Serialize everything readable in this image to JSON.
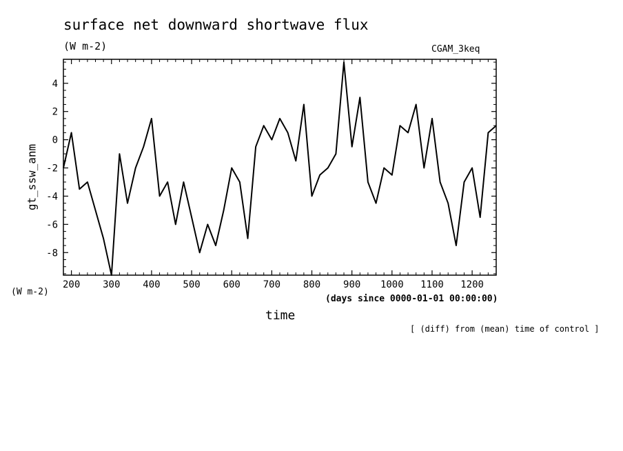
{
  "chart_data": {
    "type": "line",
    "title": "surface net downward shortwave flux",
    "units_label": "(W m-2)",
    "case_label": "CGAM_3keq",
    "ylabel": "gt_ssw_anm",
    "yunits": "(W m-2)",
    "xlabel": "time",
    "xunits": "(days since 0000-01-01 00:00:00)",
    "footnote": "[ (diff) from (mean) time of control ]",
    "xlim": [
      180,
      1260
    ],
    "ylim": [
      -9.6,
      5.7
    ],
    "xticks": [
      200,
      300,
      400,
      500,
      600,
      700,
      800,
      900,
      1000,
      1100,
      1200
    ],
    "yticks": [
      4,
      2,
      0,
      -2,
      -4,
      -6,
      -8
    ],
    "grid": false,
    "series": [
      {
        "color": "#000000",
        "x": [
          180,
          200,
          220,
          240,
          260,
          280,
          300,
          320,
          340,
          360,
          380,
          400,
          420,
          440,
          460,
          480,
          500,
          520,
          540,
          560,
          580,
          600,
          620,
          640,
          660,
          680,
          700,
          720,
          740,
          760,
          780,
          800,
          820,
          840,
          860,
          880,
          900,
          920,
          940,
          960,
          980,
          1000,
          1020,
          1040,
          1060,
          1080,
          1100,
          1120,
          1140,
          1160,
          1180,
          1200,
          1220,
          1240,
          1260
        ],
        "y": [
          -2.0,
          0.5,
          -3.5,
          -3.0,
          -5.0,
          -7.0,
          -9.6,
          -1.0,
          -4.5,
          -2.0,
          -0.5,
          1.5,
          -4.0,
          -3.0,
          -6.0,
          -3.0,
          -5.5,
          -8.0,
          -6.0,
          -7.5,
          -5.0,
          -2.0,
          -3.0,
          -7.0,
          -0.5,
          1.0,
          0.0,
          1.5,
          0.5,
          -1.5,
          2.5,
          -4.0,
          -2.5,
          -2.0,
          -1.0,
          5.5,
          -0.5,
          3.0,
          -3.0,
          -4.5,
          -2.0,
          -2.5,
          1.0,
          0.5,
          2.5,
          -2.0,
          1.5,
          -3.0,
          -4.5,
          -7.5,
          -3.0,
          -2.0,
          -5.5,
          0.5,
          1.0
        ]
      }
    ]
  }
}
